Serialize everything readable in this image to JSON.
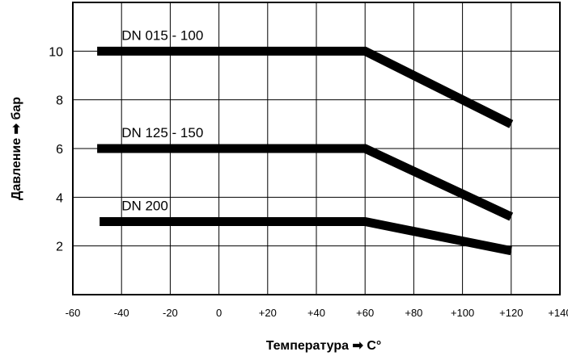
{
  "chart_data": {
    "type": "line",
    "xlabel": "Температура ➡ C°",
    "ylabel": "Давление ➡ бар",
    "xlim": [
      -60,
      140
    ],
    "ylim": [
      0,
      12
    ],
    "grid": true,
    "x_ticks": [
      "-60",
      "-40",
      "-20",
      "0",
      "+20",
      "+40",
      "+60",
      "+80",
      "+100",
      "+120",
      "+140"
    ],
    "y_ticks": [
      "2",
      "4",
      "6",
      "8",
      "10"
    ],
    "series": [
      {
        "name": "DN 015 - 100",
        "x": [
          -50,
          60,
          120
        ],
        "y": [
          10,
          10,
          7
        ]
      },
      {
        "name": "DN 125 - 150",
        "x": [
          -50,
          60,
          120
        ],
        "y": [
          6,
          6,
          3.2
        ]
      },
      {
        "name": "DN 200",
        "x": [
          -49,
          60,
          120
        ],
        "y": [
          3,
          3,
          1.8
        ]
      }
    ]
  }
}
